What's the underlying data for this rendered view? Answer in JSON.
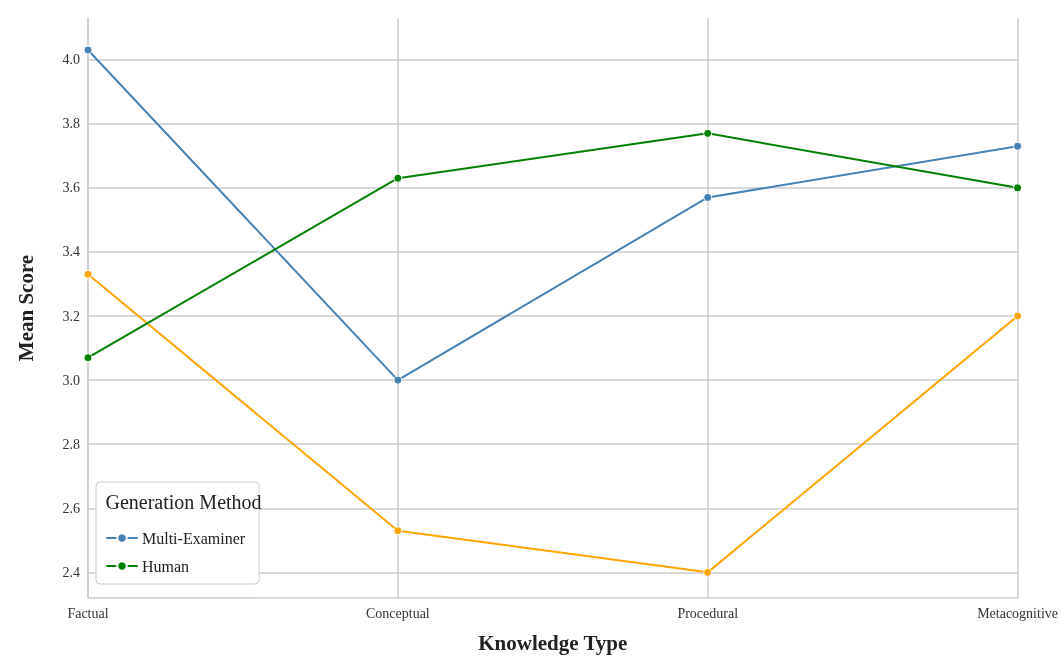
{
  "chart_data": {
    "type": "line",
    "xlabel": "Knowledge Type",
    "ylabel": "Mean Score",
    "legend_title": "Generation Method",
    "categories": [
      "Factual",
      "Conceptual",
      "Procedural",
      "Metacognitive"
    ],
    "series": [
      {
        "name": "Multi-Examiner",
        "color": "#4682b4",
        "values": [
          4.03,
          3.0,
          3.57,
          3.73
        ]
      },
      {
        "color": "#ffa500",
        "values": [
          3.33,
          2.53,
          2.4,
          3.2
        ]
      },
      {
        "name": "Human",
        "color": "#008000",
        "values": [
          3.07,
          3.63,
          3.77,
          3.6
        ]
      }
    ],
    "ylim": [
      2.32,
      4.13
    ],
    "yticks": [
      2.4,
      2.6,
      2.8,
      {
        "value": 3,
        "label": "3.0"
      },
      3.2,
      3.4,
      3.6,
      3.8,
      {
        "value": 4,
        "label": "4.0"
      }
    ],
    "grid": true,
    "legend": "bottom left",
    "marker": "circle",
    "line_style": "solid"
  }
}
